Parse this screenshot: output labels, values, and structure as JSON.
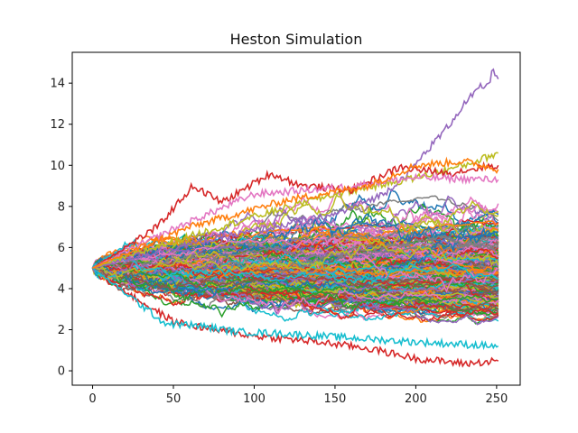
{
  "chart_data": {
    "type": "line",
    "title": "Heston Simulation",
    "xlabel": "",
    "ylabel": "",
    "xlim": [
      -12.6,
      264.6
    ],
    "ylim": [
      -0.7,
      15.5
    ],
    "x_ticks": [
      0,
      50,
      100,
      150,
      200,
      250
    ],
    "y_ticks": [
      0,
      2,
      4,
      6,
      8,
      10,
      12,
      14
    ],
    "grid": false,
    "legend": "none",
    "n_steps": 252,
    "initial_value": 5.0,
    "palette": [
      "#1f77b4",
      "#ff7f0e",
      "#2ca02c",
      "#d62728",
      "#9467bd",
      "#8c564b",
      "#e377c2",
      "#7f7f7f",
      "#bcbd22",
      "#17becf"
    ],
    "n_background_paths": 400,
    "highlighted_paths": [
      {
        "color": "#9467bd",
        "x": [
          0,
          50,
          100,
          150,
          180,
          195,
          210,
          220,
          230,
          240,
          245,
          248,
          251
        ],
        "y": [
          5.0,
          6.0,
          6.8,
          7.6,
          8.6,
          9.6,
          11.0,
          11.9,
          13.0,
          13.8,
          13.9,
          14.7,
          14.2
        ]
      },
      {
        "color": "#bcbd22",
        "x": [
          0,
          50,
          100,
          150,
          200,
          230,
          251
        ],
        "y": [
          5.0,
          6.3,
          7.5,
          8.6,
          9.4,
          10.0,
          10.6
        ]
      },
      {
        "color": "#d62728",
        "x": [
          0,
          40,
          62,
          80,
          110,
          130,
          160,
          190,
          220,
          240,
          251
        ],
        "y": [
          5.0,
          7.0,
          9.0,
          8.2,
          9.6,
          9.0,
          8.8,
          9.9,
          9.6,
          9.9,
          10.0
        ]
      },
      {
        "color": "#d62728",
        "x": [
          0,
          25,
          50,
          75,
          100,
          140,
          170,
          200,
          230,
          251
        ],
        "y": [
          5.0,
          3.6,
          2.4,
          2.0,
          1.7,
          1.4,
          1.1,
          0.6,
          0.35,
          0.48
        ]
      },
      {
        "color": "#17becf",
        "x": [
          0,
          25,
          45,
          65,
          90,
          120,
          160,
          200,
          251
        ],
        "y": [
          5.0,
          3.5,
          2.3,
          2.2,
          1.9,
          1.8,
          1.6,
          1.4,
          1.2
        ]
      },
      {
        "color": "#e377c2",
        "x": [
          0,
          50,
          100,
          150,
          200,
          251
        ],
        "y": [
          5.0,
          6.9,
          8.6,
          8.9,
          9.4,
          9.3
        ]
      },
      {
        "color": "#ff7f0e",
        "x": [
          0,
          60,
          120,
          170,
          200,
          230,
          251
        ],
        "y": [
          5.0,
          7.0,
          8.3,
          9.0,
          10.0,
          10.2,
          9.8
        ]
      }
    ]
  }
}
